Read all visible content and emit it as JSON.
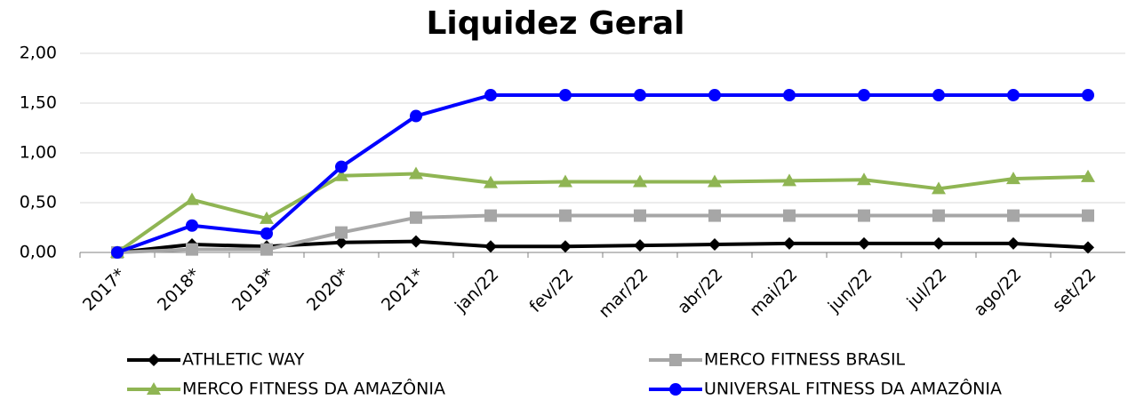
{
  "chart_data": {
    "type": "line",
    "title": "Liquidez Geral",
    "categories": [
      "2017*",
      "2018*",
      "2019*",
      "2020*",
      "2021*",
      "jan/22",
      "fev/22",
      "mar/22",
      "abr/22",
      "mai/22",
      "jun/22",
      "jul/22",
      "ago/22",
      "set/22"
    ],
    "ylim": [
      0,
      2
    ],
    "yticks": [
      {
        "value": 0,
        "label": "0,00"
      },
      {
        "value": 0.5,
        "label": "0,50"
      },
      {
        "value": 1,
        "label": "1,00"
      },
      {
        "value": 1.5,
        "label": "1,50"
      },
      {
        "value": 2,
        "label": "2,00"
      }
    ],
    "grid": true,
    "series": [
      {
        "name": "ATHLETIC WAY",
        "color": "#000000",
        "marker": "diamond",
        "values": [
          0.0,
          0.08,
          0.06,
          0.1,
          0.11,
          0.06,
          0.06,
          0.07,
          0.08,
          0.09,
          0.09,
          0.09,
          0.09,
          0.05
        ]
      },
      {
        "name": "MERCO FITNESS BRASIL",
        "color": "#a6a6a6",
        "marker": "square",
        "values": [
          0.0,
          0.03,
          0.03,
          0.2,
          0.35,
          0.37,
          0.37,
          0.37,
          0.37,
          0.37,
          0.37,
          0.37,
          0.37,
          0.37
        ]
      },
      {
        "name": "MERCO FITNESS DA AMAZÔNIA",
        "color": "#8fb553",
        "marker": "triangle",
        "values": [
          0.0,
          0.53,
          0.34,
          0.77,
          0.79,
          0.7,
          0.71,
          0.71,
          0.71,
          0.72,
          0.73,
          0.64,
          0.74,
          0.76
        ]
      },
      {
        "name": "UNIVERSAL FITNESS DA AMAZÔNIA",
        "color": "#0000ff",
        "marker": "circle",
        "values": [
          0.0,
          0.27,
          0.19,
          0.86,
          1.37,
          1.58,
          1.58,
          1.58,
          1.58,
          1.58,
          1.58,
          1.58,
          1.58,
          1.58
        ]
      }
    ]
  }
}
